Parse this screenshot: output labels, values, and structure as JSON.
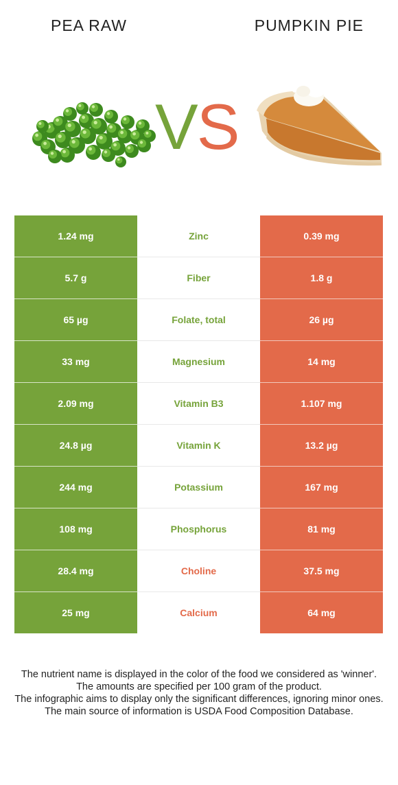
{
  "header": {
    "left_title": "PEA RAW",
    "right_title": "PUMPKIN PIE",
    "vs_v": "V",
    "vs_s": "S"
  },
  "colors": {
    "left_food": "#76a33a",
    "right_food": "#e36a4a"
  },
  "images": {
    "left": "green-peas-illustration",
    "right": "pumpkin-pie-slice-illustration"
  },
  "rows": [
    {
      "left": "1.24 mg",
      "nutrient": "Zinc",
      "right": "0.39 mg",
      "winner": "left"
    },
    {
      "left": "5.7 g",
      "nutrient": "Fiber",
      "right": "1.8 g",
      "winner": "left"
    },
    {
      "left": "65 µg",
      "nutrient": "Folate, total",
      "right": "26 µg",
      "winner": "left"
    },
    {
      "left": "33 mg",
      "nutrient": "Magnesium",
      "right": "14 mg",
      "winner": "left"
    },
    {
      "left": "2.09 mg",
      "nutrient": "Vitamin B3",
      "right": "1.107 mg",
      "winner": "left"
    },
    {
      "left": "24.8 µg",
      "nutrient": "Vitamin K",
      "right": "13.2 µg",
      "winner": "left"
    },
    {
      "left": "244 mg",
      "nutrient": "Potassium",
      "right": "167 mg",
      "winner": "left"
    },
    {
      "left": "108 mg",
      "nutrient": "Phosphorus",
      "right": "81 mg",
      "winner": "left"
    },
    {
      "left": "28.4 mg",
      "nutrient": "Choline",
      "right": "37.5 mg",
      "winner": "right"
    },
    {
      "left": "25 mg",
      "nutrient": "Calcium",
      "right": "64 mg",
      "winner": "right"
    }
  ],
  "footnote": {
    "line1": "The nutrient name is displayed in the color of the food we considered as 'winner'.",
    "line2": "The amounts are specified per 100 gram of the product.",
    "line3": "The infographic aims to display only the significant differences, ignoring minor ones.",
    "line4": "The main source of information is USDA Food Composition Database."
  }
}
